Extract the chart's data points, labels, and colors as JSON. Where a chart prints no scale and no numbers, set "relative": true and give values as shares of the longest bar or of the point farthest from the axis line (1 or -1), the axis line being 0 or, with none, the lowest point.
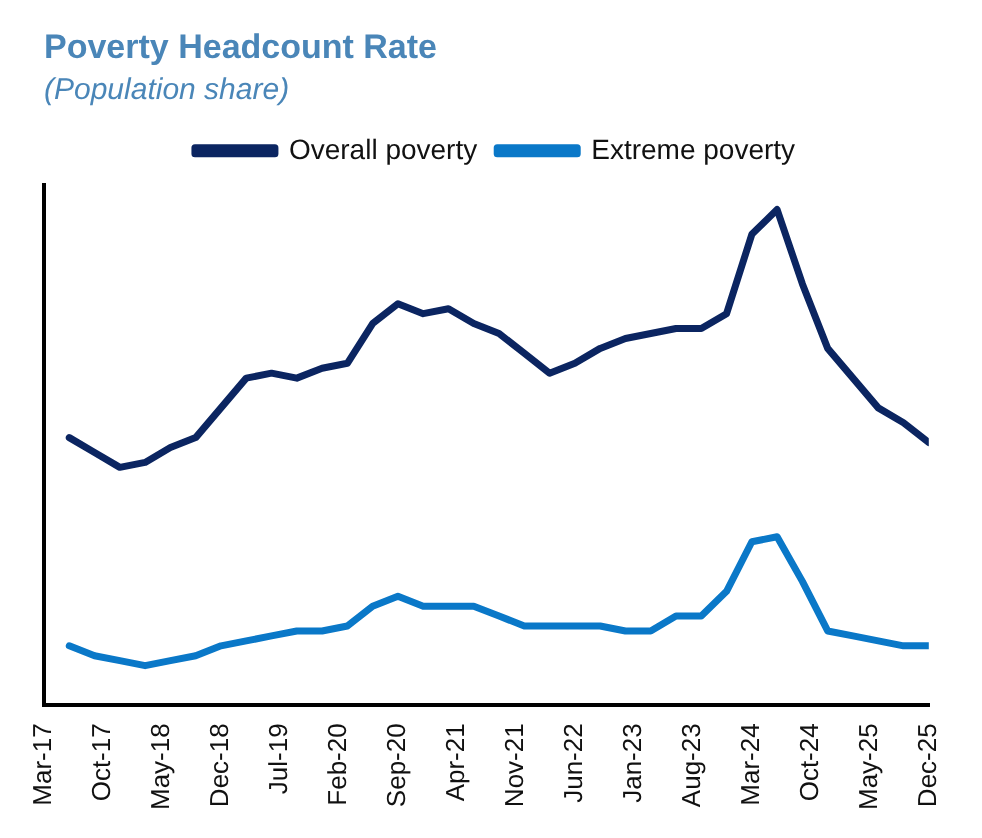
{
  "chart_data": {
    "type": "line",
    "title": "Poverty Headcount Rate",
    "subtitle": "(Population share)",
    "relative": true,
    "legend": "top",
    "grid": false,
    "marker": "none",
    "line_style": "solid",
    "x": [
      "2017-06",
      "2017-09",
      "2017-12",
      "2018-03",
      "2018-06",
      "2018-09",
      "2018-12",
      "2019-03",
      "2019-06",
      "2019-09",
      "2019-12",
      "2020-03",
      "2020-06",
      "2020-09",
      "2020-12",
      "2021-03",
      "2021-06",
      "2021-09",
      "2021-12",
      "2022-03",
      "2022-06",
      "2022-09",
      "2022-12",
      "2023-03",
      "2023-06",
      "2023-09",
      "2023-12",
      "2024-03",
      "2024-06",
      "2024-09",
      "2024-12",
      "2025-03",
      "2025-06",
      "2025-09",
      "2025-12"
    ],
    "xlim": [
      "2017-03",
      "2025-12"
    ],
    "xticks": [
      {
        "value": "2017-03",
        "label": "Mar-17"
      },
      {
        "value": "2017-10",
        "label": "Oct-17"
      },
      {
        "value": "2018-05",
        "label": "May-18"
      },
      {
        "value": "2018-12",
        "label": "Dec-18"
      },
      {
        "value": "2019-07",
        "label": "Jul-19"
      },
      {
        "value": "2020-02",
        "label": "Feb-20"
      },
      {
        "value": "2020-09",
        "label": "Sep-20"
      },
      {
        "value": "2021-04",
        "label": "Apr-21"
      },
      {
        "value": "2021-11",
        "label": "Nov-21"
      },
      {
        "value": "2022-06",
        "label": "Jun-22"
      },
      {
        "value": "2023-01",
        "label": "Jan-23"
      },
      {
        "value": "2023-08",
        "label": "Aug-23"
      },
      {
        "value": "2024-03",
        "label": "Mar-24"
      },
      {
        "value": "2024-10",
        "label": "Oct-24"
      },
      {
        "value": "2025-05",
        "label": "May-25"
      },
      {
        "value": "2025-12",
        "label": "Dec-25"
      }
    ],
    "series": [
      {
        "name": "Overall poverty",
        "color": "#0b2561",
        "values": [
          0.54,
          0.51,
          0.48,
          0.49,
          0.52,
          0.54,
          0.6,
          0.66,
          0.67,
          0.66,
          0.68,
          0.69,
          0.77,
          0.81,
          0.79,
          0.8,
          0.77,
          0.75,
          0.71,
          0.67,
          0.69,
          0.72,
          0.74,
          0.75,
          0.76,
          0.76,
          0.79,
          0.95,
          1,
          0.85,
          0.72,
          0.66,
          0.6,
          0.57,
          0.53
        ]
      },
      {
        "name": "Extreme poverty",
        "color": "#0a78c8",
        "values": [
          0.12,
          0.1,
          0.09,
          0.08,
          0.09,
          0.1,
          0.12,
          0.13,
          0.14,
          0.15,
          0.15,
          0.16,
          0.2,
          0.22,
          0.2,
          0.2,
          0.2,
          0.18,
          0.16,
          0.16,
          0.16,
          0.16,
          0.15,
          0.15,
          0.18,
          0.18,
          0.23,
          0.33,
          0.34,
          0.25,
          0.15,
          0.14,
          0.13,
          0.12,
          0.12
        ]
      }
    ]
  }
}
